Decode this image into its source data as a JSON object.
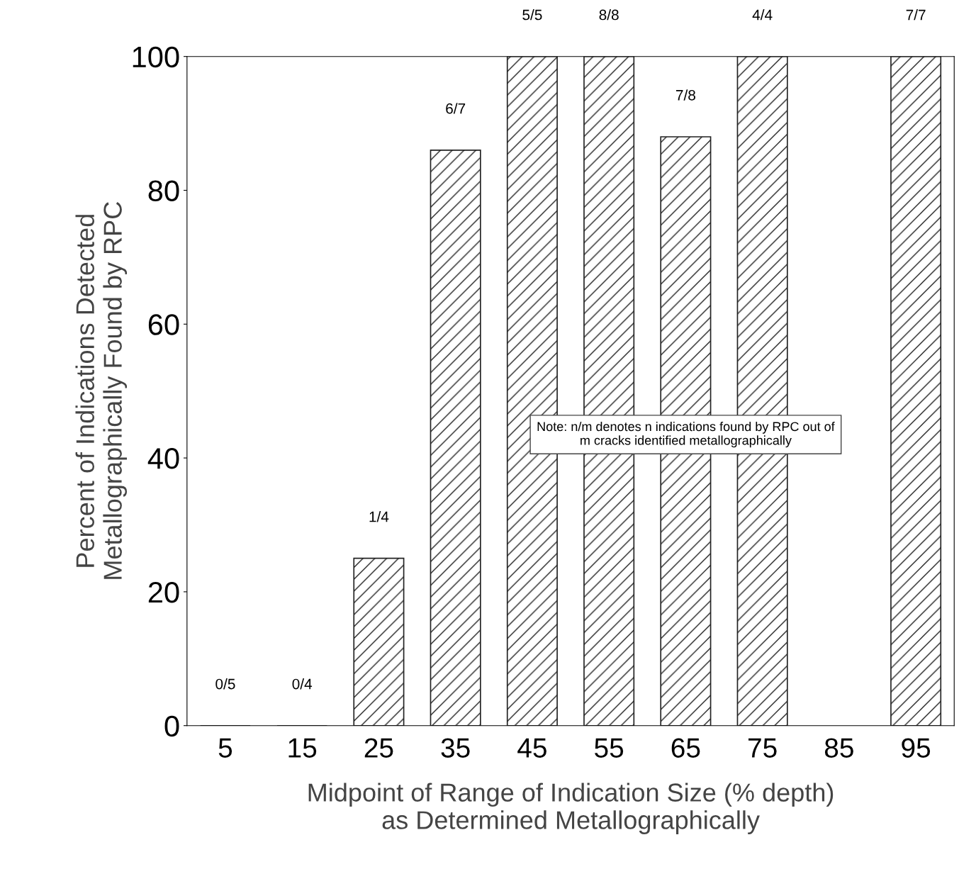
{
  "chart_data": {
    "type": "bar",
    "xlabel": "Midpoint of Range of Indication Size (% depth)\nas Determined Metallographically",
    "ylabel": "Percent of Indications Detected\nMetallographically Found by RPC",
    "categories": [
      "5",
      "15",
      "25",
      "35",
      "45",
      "55",
      "65",
      "75",
      "85",
      "95"
    ],
    "values": [
      0,
      0,
      25,
      86,
      100,
      100,
      88,
      100,
      null,
      100
    ],
    "color": "#222222",
    "ylim": [
      0,
      100
    ],
    "yticks": [
      0,
      20,
      40,
      60,
      80,
      100
    ],
    "grid": false,
    "legend": false,
    "annotations": [
      {
        "text": "0/5",
        "x": "5",
        "y": 0
      },
      {
        "text": "0/4",
        "x": "15",
        "y": 0
      },
      {
        "text": "1/4",
        "x": "25",
        "y": 25
      },
      {
        "text": "6/7",
        "x": "35",
        "y": 86
      },
      {
        "text": "5/5",
        "x": "45",
        "y": 100
      },
      {
        "text": "8/8",
        "x": "55",
        "y": 100
      },
      {
        "text": "7/8",
        "x": "65",
        "y": 88
      },
      {
        "text": "4/4",
        "x": "75",
        "y": 100
      },
      {
        "text": "7/7",
        "x": "95",
        "y": 100
      },
      "Note: n/m denotes n indications found by RPC out of\nm cracks identified metallographically"
    ]
  }
}
